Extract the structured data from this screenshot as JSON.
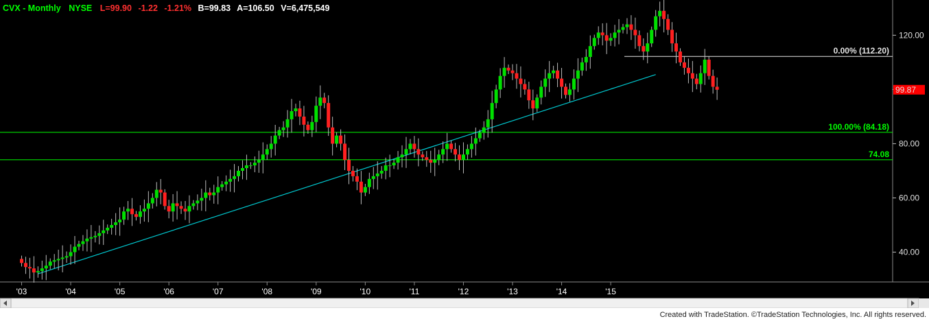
{
  "header": {
    "symbol": "CVX - Monthly",
    "exchange": "NYSE",
    "last": "L=99.90",
    "change": "-1.22",
    "change_pct": "-1.21%",
    "bid": "B=99.83",
    "ask": "A=106.50",
    "volume": "V=6,475,549"
  },
  "footer": "Created with TradeStation. ©TradeStation Technologies, Inc. All rights reserved.",
  "colors": {
    "background": "#000000",
    "up_candle": "#00e000",
    "down_candle": "#ff2020",
    "support_line": "#00ff00",
    "trend_line": "#00c8d0",
    "fib_line": "#e6e6e6",
    "header_green": "#00ff00",
    "header_red": "#ff3030",
    "header_white": "#ffffff"
  },
  "chart_data": {
    "type": "candlestick",
    "title": "CVX - Monthly",
    "x_ticks": [
      "'03",
      "'04",
      "'05",
      "'06",
      "'07",
      "'08",
      "'09",
      "'10",
      "'11",
      "'12",
      "'13",
      "'14",
      "'15"
    ],
    "y_ticks": [
      40,
      60,
      80,
      100,
      120
    ],
    "ylim": [
      29,
      133
    ],
    "last_price_label": "99.87",
    "horizontal_levels": [
      {
        "label": "0.00% (112.20)",
        "value": 112.2,
        "color": "#e6e6e6"
      },
      {
        "label": "100.00% (84.18)",
        "value": 84.18,
        "color": "#00ff00"
      },
      {
        "label": "74.08",
        "value": 74.08,
        "color": "#00ff00"
      }
    ],
    "trend_line": {
      "start": {
        "x": "2003-05",
        "y": 32.0
      },
      "end": {
        "x": "2015-12",
        "y": 105.5
      }
    },
    "closes_start": "2003-01",
    "closes": [
      36,
      34.5,
      34,
      32.5,
      33,
      34,
      35,
      36.5,
      37,
      37.5,
      38,
      38.5,
      40,
      42,
      43,
      44,
      45,
      45.5,
      46,
      47,
      48,
      49,
      50,
      51,
      52,
      55,
      56,
      54,
      53,
      55,
      56,
      58,
      60,
      63,
      62,
      57,
      55,
      58,
      57,
      56,
      55,
      57,
      58,
      59,
      60,
      62,
      61,
      62,
      64,
      65,
      66,
      67,
      68,
      70,
      71,
      72,
      72,
      73,
      74,
      76,
      78,
      80,
      83,
      85,
      86,
      89,
      92,
      93,
      90,
      87,
      85,
      88,
      94,
      97,
      95,
      86,
      80,
      83,
      80,
      74,
      70,
      68,
      66,
      62,
      64,
      67,
      68,
      69,
      70,
      72,
      72,
      73,
      75,
      76,
      78,
      80,
      78,
      76,
      75,
      74,
      73,
      74,
      76,
      78,
      80,
      78,
      76,
      74,
      76,
      78,
      80,
      82,
      84,
      86,
      89,
      95,
      100,
      105,
      108,
      107,
      106,
      104,
      102,
      100,
      96,
      93,
      97,
      101,
      104,
      106,
      107,
      104,
      101,
      98,
      100,
      104,
      107,
      110,
      112,
      116,
      119,
      121,
      120,
      118,
      119,
      121,
      122,
      123,
      124,
      122,
      120,
      116,
      114,
      117,
      122,
      127,
      129,
      126,
      122,
      117,
      114,
      110,
      108,
      106,
      104,
      102,
      106,
      111,
      105,
      101,
      99.9
    ]
  }
}
